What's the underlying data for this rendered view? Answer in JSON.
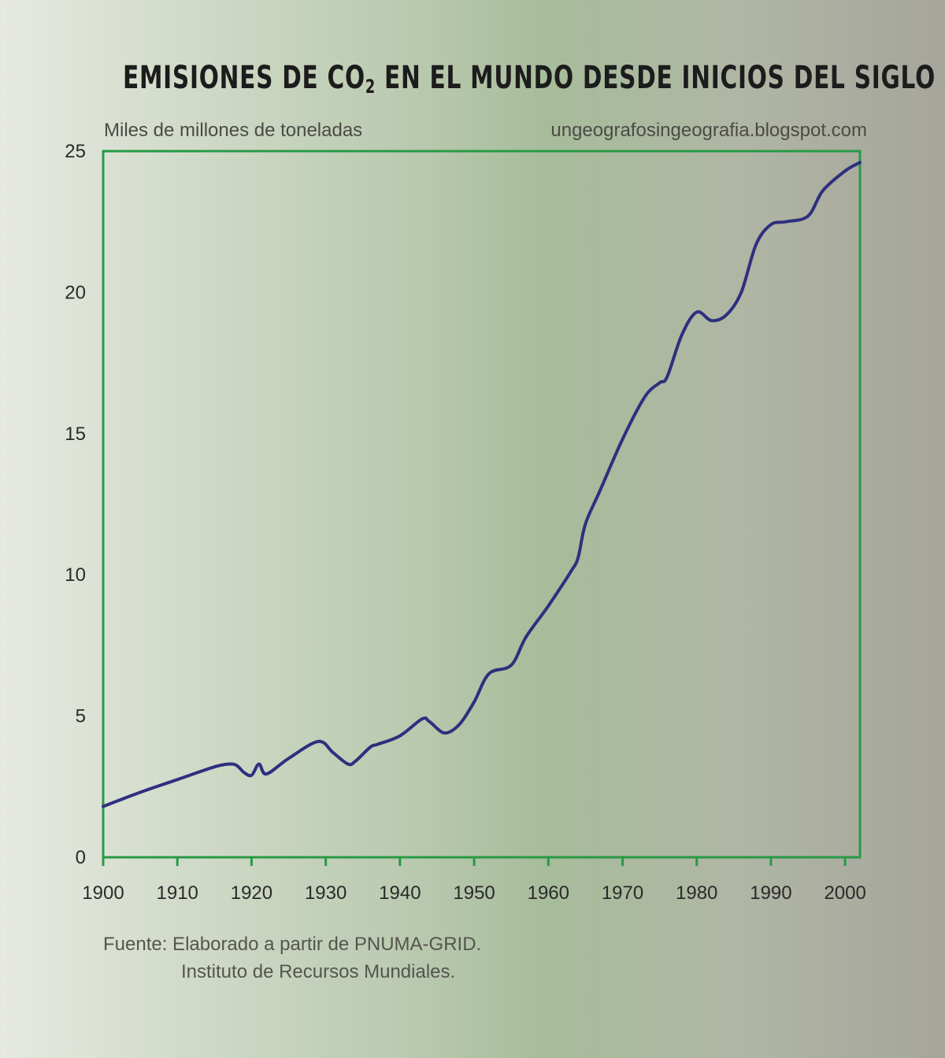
{
  "title": {
    "prefix": "EMISIONES DE CO",
    "sub": "2",
    "suffix": " EN EL MUNDO DESDE INICIOS DEL SIGLO XX"
  },
  "source_url": "ungeografosingeografia.blogspot.com",
  "footnote": {
    "line1": "Fuente: Elaborado a partir de PNUMA-GRID.",
    "line2": "Instituto de Recursos Mundiales."
  },
  "colors": {
    "line": "#2f2f7f",
    "frame": "#279a44"
  },
  "chart_data": {
    "type": "line",
    "ylabel": "Miles de millones de toneladas",
    "xlim": [
      1900,
      2002
    ],
    "ylim": [
      0,
      25
    ],
    "x_ticks": [
      1900,
      1910,
      1920,
      1930,
      1940,
      1950,
      1960,
      1970,
      1980,
      1990,
      2000
    ],
    "y_ticks": [
      0,
      5,
      10,
      15,
      20,
      25
    ],
    "grid": false,
    "series": [
      {
        "x": [
          1900,
          1905,
          1910,
          1915,
          1917,
          1918,
          1919,
          1920,
          1921,
          1922,
          1925,
          1929,
          1931,
          1933,
          1934,
          1936,
          1937,
          1940,
          1943,
          1944,
          1946,
          1948,
          1950,
          1952,
          1955,
          1957,
          1960,
          1963,
          1964,
          1965,
          1967,
          1970,
          1973,
          1975,
          1976,
          1978,
          1980,
          1982,
          1984,
          1986,
          1988,
          1990,
          1992,
          1995,
          1997,
          2000,
          2002
        ],
        "y": [
          1.8,
          2.3,
          2.75,
          3.2,
          3.3,
          3.25,
          3.0,
          2.9,
          3.3,
          2.95,
          3.5,
          4.1,
          3.7,
          3.3,
          3.4,
          3.9,
          4.0,
          4.3,
          4.9,
          4.8,
          4.4,
          4.7,
          5.5,
          6.5,
          6.8,
          7.8,
          8.9,
          10.1,
          10.6,
          11.8,
          13.0,
          14.8,
          16.3,
          16.8,
          17.0,
          18.5,
          19.3,
          19.0,
          19.2,
          20.0,
          21.7,
          22.4,
          22.5,
          22.7,
          23.6,
          24.3,
          24.6
        ]
      }
    ]
  }
}
